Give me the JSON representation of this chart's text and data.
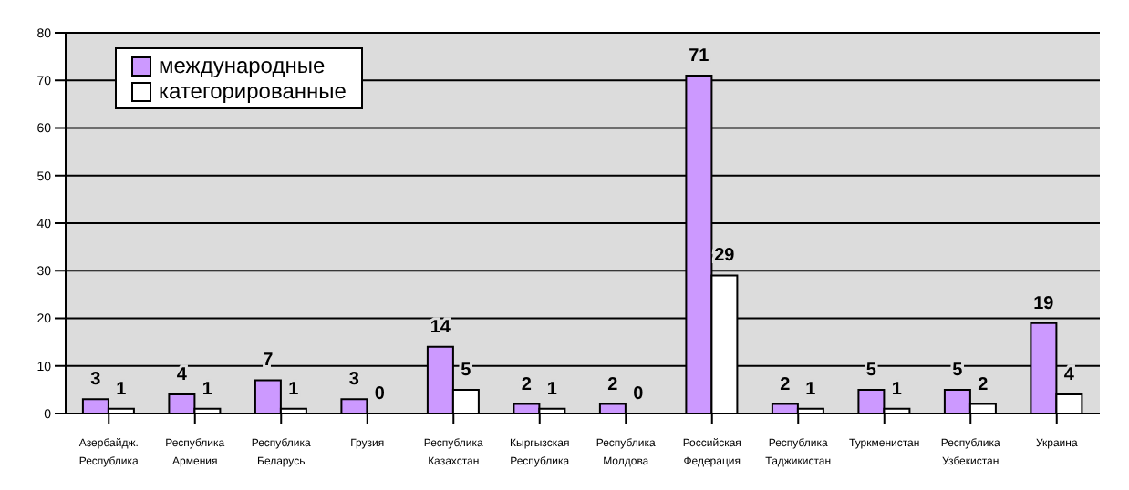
{
  "chart_data": {
    "type": "bar",
    "categories": [
      "Азербайдж. Республика",
      "Республика Армения",
      "Республика Беларусь",
      "Грузия",
      "Республика Казахстан",
      "Кыргызская Республика",
      "Республика Молдова",
      "Российская Федерация",
      "Республика Таджикистан",
      "Туркменистан",
      "Республика Узбекистан",
      "Украина"
    ],
    "series": [
      {
        "name": "международные",
        "color": "#cc99ff",
        "values": [
          3,
          4,
          7,
          3,
          14,
          2,
          2,
          71,
          2,
          5,
          5,
          19
        ]
      },
      {
        "name": "категорированные",
        "color": "#ffffff",
        "values": [
          1,
          1,
          1,
          0,
          5,
          1,
          0,
          29,
          1,
          1,
          2,
          4
        ]
      }
    ],
    "ylim": [
      0,
      80
    ],
    "yticks": [
      0,
      10,
      20,
      30,
      40,
      50,
      60,
      70,
      80
    ],
    "grid": "y",
    "legend": "top left",
    "data_labels": true
  }
}
